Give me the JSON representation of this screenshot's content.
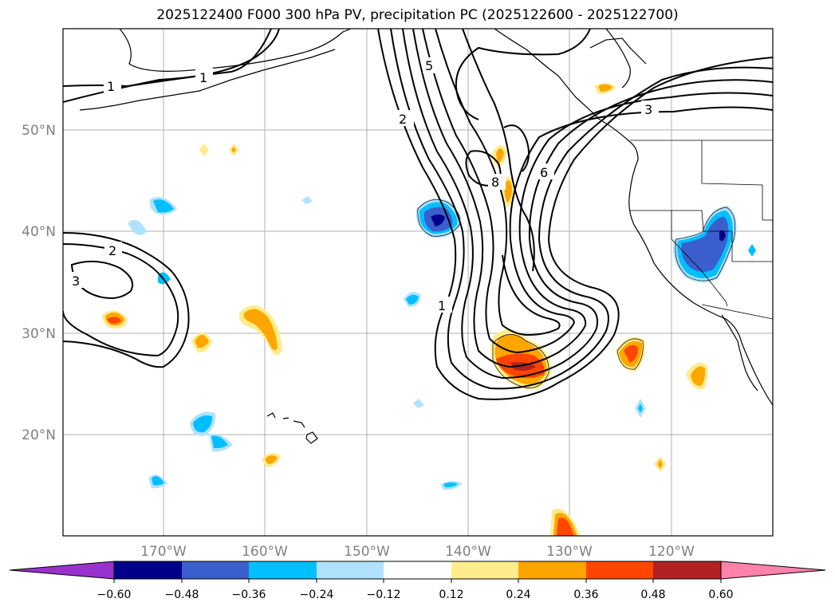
{
  "title": "2025122400 F000 300 hPa PV, precipitation PC (2025122600 - 2025122700)",
  "axes": {
    "lat_labels": [
      "50°N",
      "40°N",
      "30°N",
      "20°N"
    ],
    "lon_labels": [
      "170°W",
      "160°W",
      "150°W",
      "140°W",
      "130°W",
      "120°W"
    ]
  },
  "pv_contour_labels": [
    "1",
    "1",
    "2",
    "3",
    "5",
    "2",
    "8",
    "6",
    "3",
    "1"
  ],
  "colorbar": {
    "ticks": [
      "−0.60",
      "−0.48",
      "−0.36",
      "−0.24",
      "−0.12",
      "0.12",
      "0.24",
      "0.36",
      "0.48",
      "0.60"
    ],
    "colors": [
      "#9932cc",
      "#00008b",
      "#3a5fcd",
      "#00bfff",
      "#b0e2ff",
      "#ffffff",
      "#ffec8b",
      "#ffa500",
      "#ff4500",
      "#b22222",
      "#ff82ab"
    ]
  }
}
